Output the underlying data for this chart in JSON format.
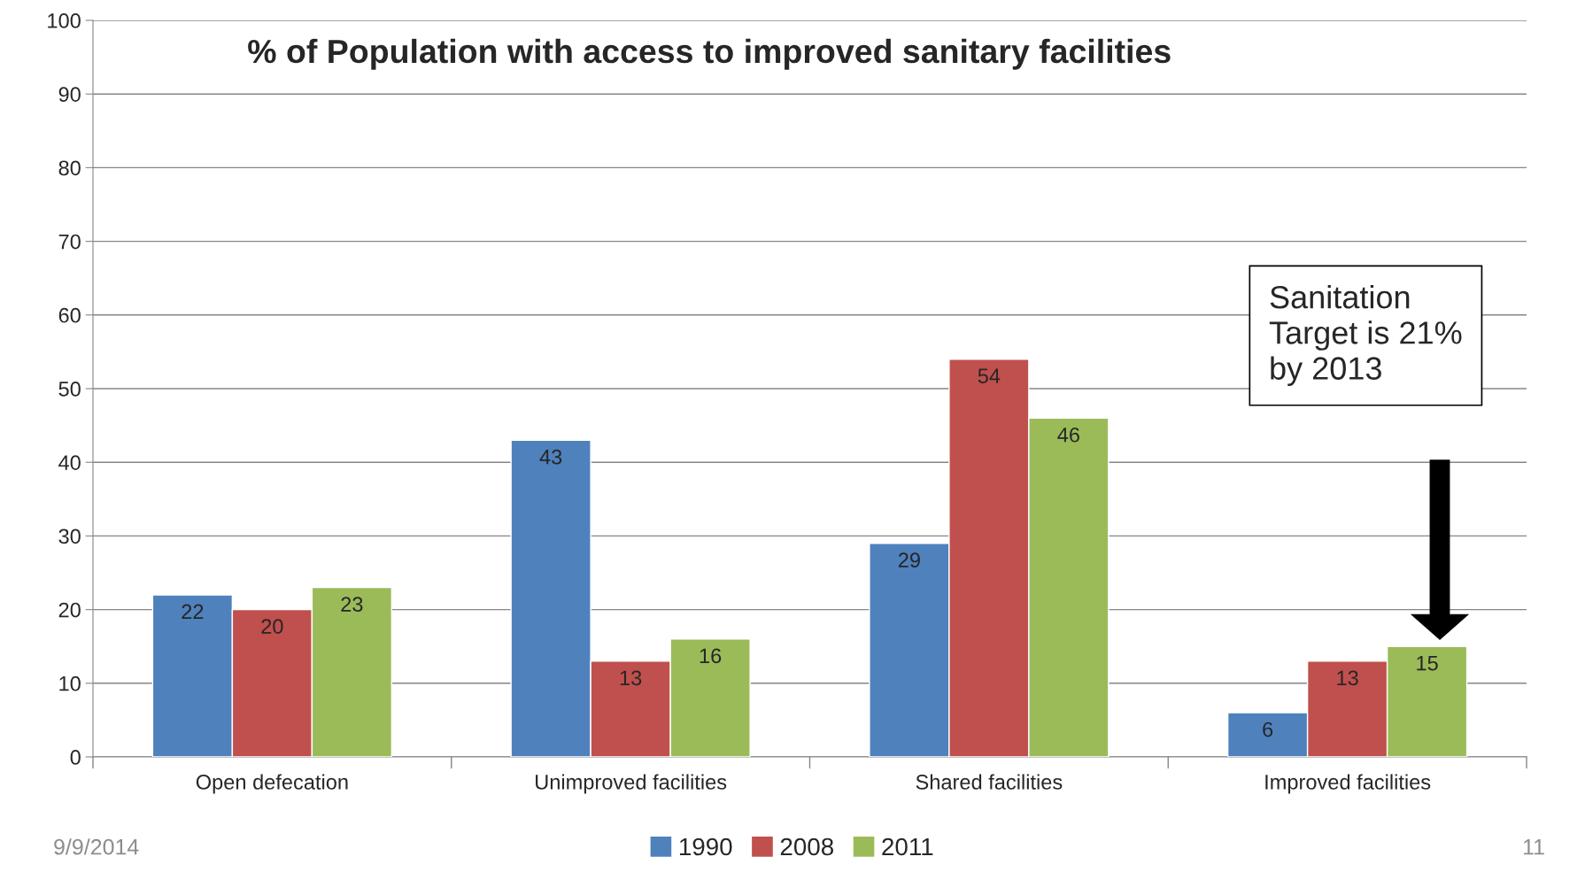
{
  "chart_data": {
    "type": "bar",
    "title": "% of Population with access to improved sanitary facilities",
    "categories": [
      "Open defecation",
      "Unimproved facilities",
      "Shared facilities",
      "Improved facilities"
    ],
    "series": [
      {
        "name": "1990",
        "color": "#4f81bd",
        "values": [
          22,
          43,
          29,
          6
        ]
      },
      {
        "name": "2008",
        "color": "#c0504d",
        "values": [
          20,
          13,
          54,
          13
        ]
      },
      {
        "name": "2011",
        "color": "#9bbb59",
        "values": [
          23,
          16,
          46,
          15
        ]
      }
    ],
    "ylim": [
      0,
      100
    ],
    "yticks": [
      0,
      10,
      20,
      30,
      40,
      50,
      60,
      70,
      80,
      90,
      100
    ],
    "grid": "y",
    "legend": "bottom",
    "data_labels": true,
    "annotations": [
      "Sanitation\nTarget is 21%\nby 2013",
      "9/9/2014",
      "11"
    ]
  }
}
